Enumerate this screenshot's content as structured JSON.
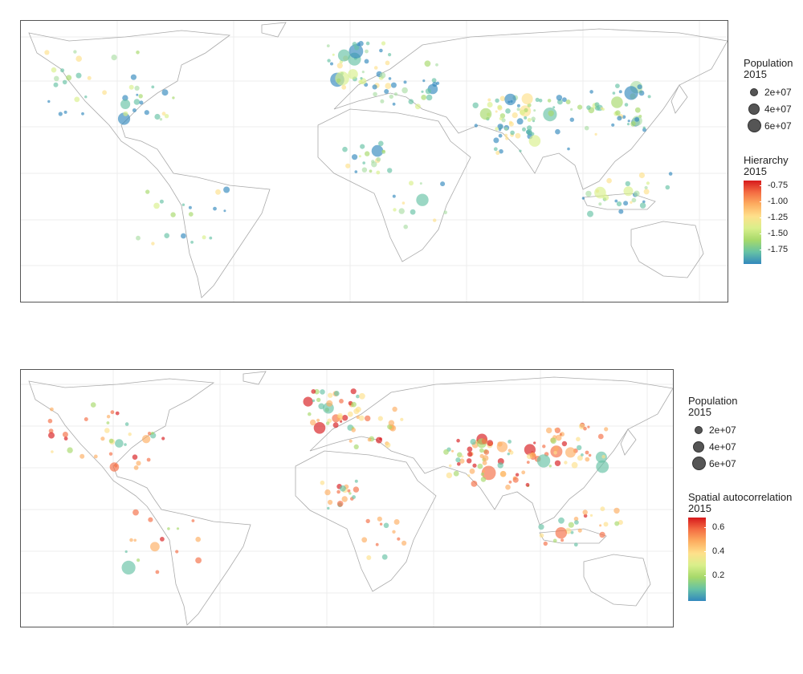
{
  "top_map": {
    "size_legend": {
      "title_line1": "Population",
      "title_line2": "2015",
      "entries": [
        "2e+07",
        "4e+07",
        "6e+07"
      ]
    },
    "color_legend": {
      "title_line1": "Hierarchy",
      "title_line2": "2015",
      "ticks": [
        "-0.75",
        "-1.00",
        "-1.25",
        "-1.50",
        "-1.75"
      ],
      "colors": [
        "#d7191c",
        "#f46d43",
        "#fdae61",
        "#fee08b",
        "#d9ef8b",
        "#a6d96a",
        "#66c2a5",
        "#3288bd"
      ]
    }
  },
  "bottom_map": {
    "size_legend": {
      "title_line1": "Population",
      "title_line2": "2015",
      "entries": [
        "2e+07",
        "4e+07",
        "6e+07"
      ]
    },
    "color_legend": {
      "title_line1": "Spatial autocorrelation",
      "title_line2": "2015",
      "ticks": [
        "0.6",
        "0.4",
        "0.2"
      ],
      "colors": [
        "#d7191c",
        "#f46d43",
        "#fdae61",
        "#fee08b",
        "#d9ef8b",
        "#a6d96a",
        "#66c2a5",
        "#3288bd"
      ]
    }
  }
}
